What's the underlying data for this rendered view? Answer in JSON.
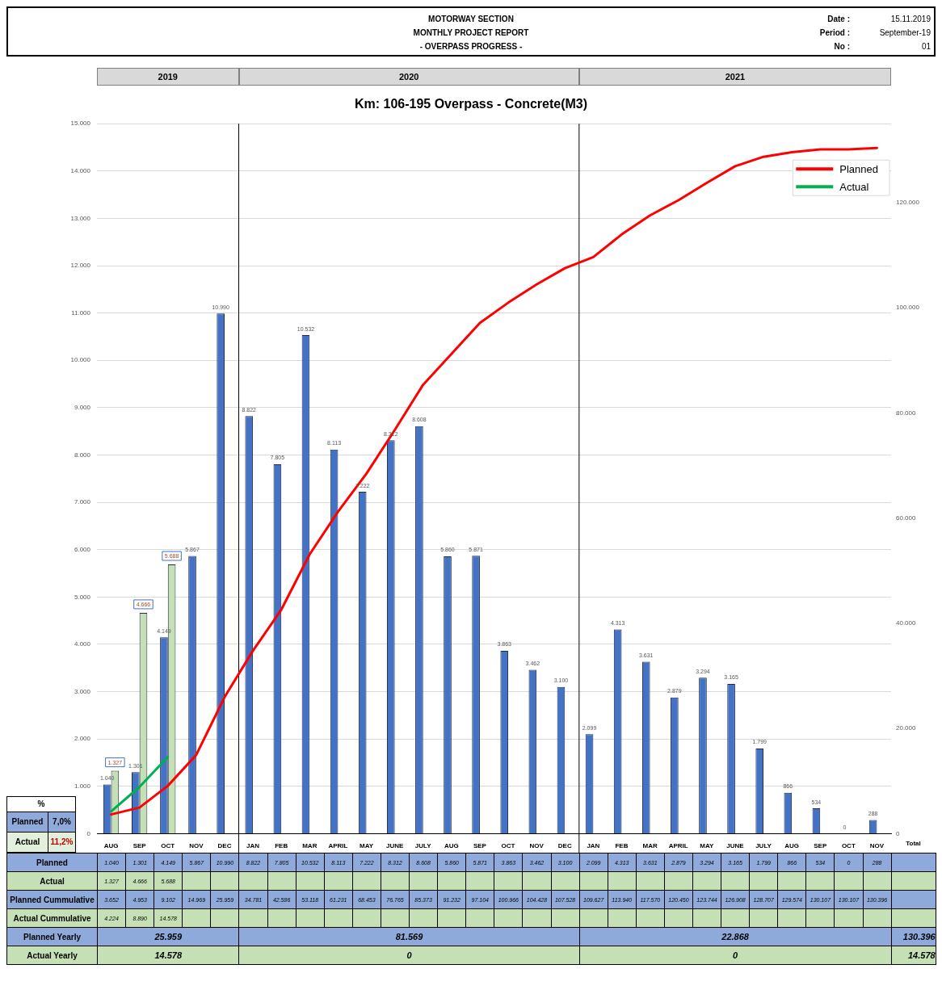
{
  "chart_data": {
    "type": "bar",
    "title": "Km: 106-195 Overpass - Concrete(M3)",
    "categories": [
      "AUG",
      "SEP",
      "OCT",
      "NOV",
      "DEC",
      "JAN",
      "FEB",
      "MAR",
      "APRIL",
      "MAY",
      "JUNE",
      "JULY",
      "AUG",
      "SEP",
      "OCT",
      "NOV",
      "DEC",
      "JAN",
      "FEB",
      "MAR",
      "APRIL",
      "MAY",
      "JUNE",
      "JULY",
      "AUG",
      "SEP",
      "OCT",
      "NOV"
    ],
    "series": [
      {
        "type": "bar",
        "color": "#4472c4",
        "values": [
          1040,
          1301,
          4149,
          5867,
          10990,
          8822,
          7805,
          10532,
          8113,
          7222,
          8312,
          8608,
          5860,
          5871,
          3863,
          3462,
          3100,
          2099,
          4313,
          3631,
          2879,
          3294,
          3165,
          1799,
          866,
          534,
          0,
          288
        ],
        "value_labels": [
          "1.040",
          "1.301",
          "4.149",
          "5.867",
          "10.990",
          "8.822",
          "7.805",
          "10.532",
          "8.113",
          "7.222",
          "8.312",
          "8.608",
          "5.860",
          "5.871",
          "3.863",
          "3.462",
          "3.100",
          "2.099",
          "4.313",
          "3.631",
          "2.879",
          "3.294",
          "3.165",
          "1.799",
          "866",
          "534",
          "0",
          "288"
        ]
      },
      {
        "type": "bar",
        "color": "#c5e0b4",
        "values": [
          1327,
          4666,
          5688,
          null,
          null,
          null,
          null,
          null,
          null,
          null,
          null,
          null,
          null,
          null,
          null,
          null,
          null,
          null,
          null,
          null,
          null,
          null,
          null,
          null,
          null,
          null,
          null,
          null
        ],
        "value_labels": [
          "1.327",
          "4.666",
          "5.688",
          null,
          null,
          null,
          null,
          null,
          null,
          null,
          null,
          null,
          null,
          null,
          null,
          null,
          null,
          null,
          null,
          null,
          null,
          null,
          null,
          null,
          null,
          null,
          null,
          null
        ]
      },
      {
        "name": "Planned",
        "type": "line",
        "axis": "y2",
        "color": "#ff0000",
        "values": [
          3652,
          4953,
          9102,
          14969,
          25959,
          34781,
          42586,
          53118,
          61231,
          68453,
          76765,
          85373,
          91232,
          97104,
          100966,
          104428,
          107528,
          109627,
          113940,
          117570,
          120450,
          123744,
          126908,
          128707,
          129574,
          130107,
          130107,
          130396
        ],
        "value_labels": [
          "3.652",
          "4.953",
          "9.102",
          "14.969",
          "25.959",
          "34.781",
          "42.586",
          "53.118",
          "61.231",
          "68.453",
          "76.765",
          "85.373",
          "91.232",
          "97.104",
          "100.966",
          "104.428",
          "107.528",
          "109.627",
          "113.940",
          "117.570",
          "120.450",
          "123.744",
          "126.908",
          "128.707",
          "129.574",
          "130.107",
          "130.107",
          "130.396"
        ]
      },
      {
        "name": "Actual",
        "type": "line",
        "axis": "y2",
        "color": "#00b050",
        "values": [
          4224,
          8890,
          14578,
          null,
          null,
          null,
          null,
          null,
          null,
          null,
          null,
          null,
          null,
          null,
          null,
          null,
          null,
          null,
          null,
          null,
          null,
          null,
          null,
          null,
          null,
          null,
          null,
          null
        ],
        "value_labels": [
          "4.224",
          "8.890",
          "14.578",
          null,
          null,
          null,
          null,
          null,
          null,
          null,
          null,
          null,
          null,
          null,
          null,
          null,
          null,
          null,
          null,
          null,
          null,
          null,
          null,
          null,
          null,
          null,
          null,
          null
        ]
      }
    ],
    "ylim": [
      0,
      15000
    ],
    "yticks": [
      0,
      {
        "value": 1000,
        "label": "1.000"
      },
      {
        "value": 2000,
        "label": "2.000"
      },
      {
        "value": 3000,
        "label": "3.000"
      },
      {
        "value": 4000,
        "label": "4.000"
      },
      {
        "value": 5000,
        "label": "5.000"
      },
      {
        "value": 6000,
        "label": "6.000"
      },
      {
        "value": 7000,
        "label": "7.000"
      },
      {
        "value": 8000,
        "label": "8.000"
      },
      {
        "value": 9000,
        "label": "9.000"
      },
      {
        "value": 10000,
        "label": "10.000"
      },
      {
        "value": 11000,
        "label": "11.000"
      },
      {
        "value": 12000,
        "label": "12.000"
      },
      {
        "value": 13000,
        "label": "13.000"
      },
      {
        "value": 14000,
        "label": "14.000"
      },
      {
        "value": 15000,
        "label": "15.000"
      }
    ],
    "y2lim": [
      0,
      135000
    ],
    "y2ticks": [
      0,
      {
        "value": 20000,
        "label": "20.000"
      },
      {
        "value": 40000,
        "label": "40.000"
      },
      {
        "value": 60000,
        "label": "60.000"
      },
      {
        "value": 80000,
        "label": "80.000"
      },
      {
        "value": 100000,
        "label": "100.000"
      },
      {
        "value": 120000,
        "label": "120.000"
      }
    ],
    "grid": "y",
    "legend": "top right",
    "marker": "none",
    "annotations": [
      "MOTORWAY SECTION",
      "MONTHLY PROJECT REPORT",
      "- OVERPASS PROGRESS -",
      "Date :",
      "15.11.2019",
      "Period :",
      "September-19",
      "No :",
      "01",
      "2019",
      "2020",
      "2021",
      "%",
      "Planned",
      "7,0%",
      "Actual",
      "11,2%",
      "Total",
      "Planned Cummulative",
      "Actual Cummulative",
      "Planned Yearly",
      "25.959",
      "81.569",
      "22.868",
      "130.396",
      "Actual Yearly",
      "14.578",
      "0",
      "0",
      "14.578",
      "Planned",
      "Actual"
    ]
  }
}
